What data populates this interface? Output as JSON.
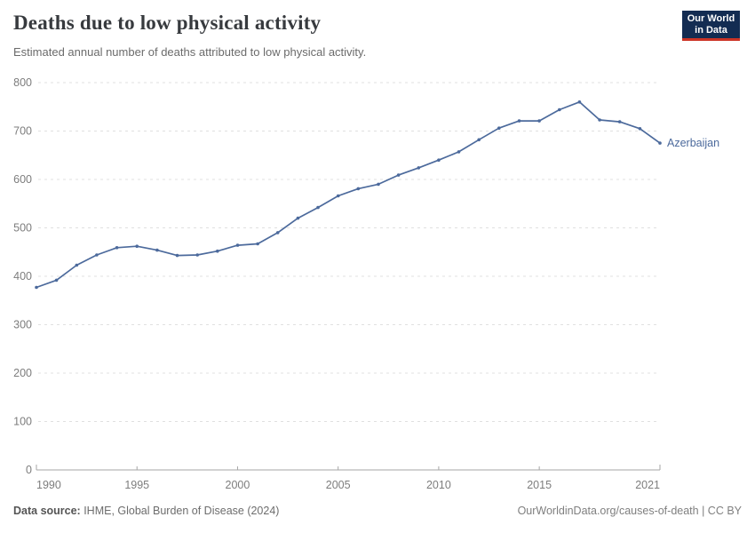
{
  "header": {
    "title": "Deaths due to low physical activity",
    "subtitle": "Estimated annual number of deaths attributed to low physical activity.",
    "logo": {
      "line1": "Our World",
      "line2": "in Data"
    }
  },
  "chart_data": {
    "type": "line",
    "title": "Deaths due to low physical activity",
    "entity_label": "Azerbaijan",
    "x": [
      1990,
      1991,
      1992,
      1993,
      1994,
      1995,
      1996,
      1997,
      1998,
      1999,
      2000,
      2001,
      2002,
      2003,
      2004,
      2005,
      2006,
      2007,
      2008,
      2009,
      2010,
      2011,
      2012,
      2013,
      2014,
      2015,
      2016,
      2017,
      2018,
      2019,
      2020,
      2021
    ],
    "series": [
      {
        "name": "Azerbaijan",
        "color": "#4C6A9C",
        "values": [
          377,
          392,
          423,
          444,
          459,
          462,
          454,
          443,
          444,
          452,
          464,
          467,
          490,
          520,
          542,
          566,
          581,
          590,
          609,
          624,
          640,
          657,
          682,
          706,
          721,
          721,
          744,
          760,
          723,
          719,
          705,
          675
        ]
      }
    ],
    "xlabel": "",
    "ylabel": "",
    "ylim": [
      0,
      800
    ],
    "yticks": [
      0,
      100,
      200,
      300,
      400,
      500,
      600,
      700,
      800
    ],
    "xticks": [
      1990,
      1995,
      2000,
      2005,
      2010,
      2015,
      2021
    ],
    "grid": "horizontal-dashed",
    "legend_position": "end-of-line-label"
  },
  "footer": {
    "source_label": "Data source:",
    "source_text": " IHME, Global Burden of Disease (2024)",
    "link_text": "OurWorldinData.org/causes-of-death | CC BY"
  },
  "colors": {
    "series": "#4C6A9C",
    "logo_bg": "#132c52",
    "logo_bar": "#cc3426",
    "grid": "#e0e0e0",
    "axis": "#a6a6a6",
    "tick_label": "#7d7d7d"
  }
}
